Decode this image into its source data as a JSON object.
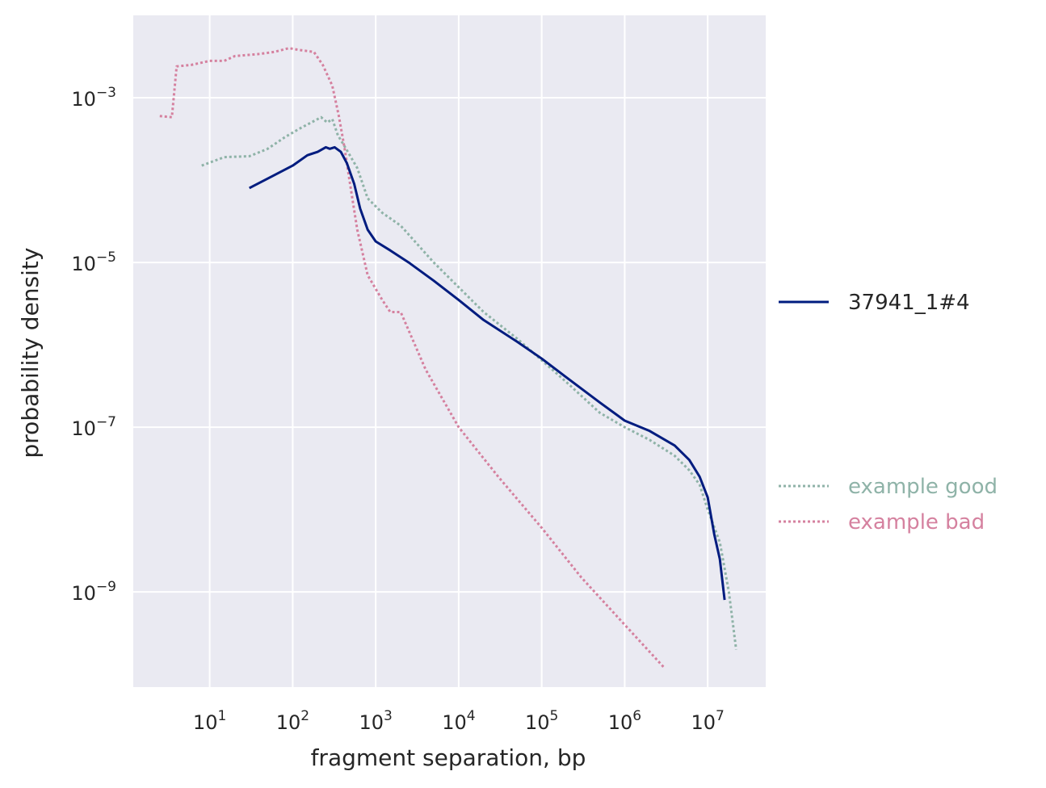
{
  "chart_data": {
    "type": "line",
    "xscale": "log",
    "yscale": "log",
    "xlabel": "fragment separation, bp",
    "ylabel": "probability density",
    "xlim": [
      1.2,
      50000000.0
    ],
    "ylim": [
      7e-11,
      0.01
    ],
    "x_ticks": [
      {
        "base": "10",
        "exp": "1",
        "value": 10
      },
      {
        "base": "10",
        "exp": "2",
        "value": 100
      },
      {
        "base": "10",
        "exp": "3",
        "value": 1000
      },
      {
        "base": "10",
        "exp": "4",
        "value": 10000
      },
      {
        "base": "10",
        "exp": "5",
        "value": 100000
      },
      {
        "base": "10",
        "exp": "6",
        "value": 1000000
      },
      {
        "base": "10",
        "exp": "7",
        "value": 10000000
      }
    ],
    "y_ticks": [
      {
        "base": "10",
        "exp": "−3",
        "value": 0.001
      },
      {
        "base": "10",
        "exp": "−5",
        "value": 1e-05
      },
      {
        "base": "10",
        "exp": "−7",
        "value": 1e-07
      },
      {
        "base": "10",
        "exp": "−9",
        "value": 1e-09
      }
    ],
    "grid": true,
    "legend_position": "right",
    "series": [
      {
        "name": "37941_1#4",
        "color": "#001c7f",
        "style": "solid",
        "x": [
          30,
          60,
          100,
          150,
          200,
          250,
          280,
          320,
          380,
          450,
          550,
          650,
          800,
          1000,
          1500,
          2500,
          5000,
          10000,
          20000,
          50000,
          100000,
          200000,
          500000,
          1000000,
          2000000,
          4000000,
          6000000,
          8000000,
          10000000,
          12000000,
          14000000,
          16000000
        ],
        "y": [
          8e-05,
          0.000115,
          0.00015,
          0.0002,
          0.00022,
          0.00025,
          0.00024,
          0.00025,
          0.00022,
          0.00016,
          9e-05,
          4.5e-05,
          2.5e-05,
          1.8e-05,
          1.4e-05,
          1e-05,
          6e-06,
          3.5e-06,
          2e-06,
          1.1e-06,
          6.8e-07,
          4e-07,
          2e-07,
          1.2e-07,
          9e-08,
          6e-08,
          4e-08,
          2.5e-08,
          1.4e-08,
          5e-09,
          2.5e-09,
          8e-10
        ]
      },
      {
        "name": "example good",
        "color": "#8fb3a8",
        "style": "dotted",
        "x": [
          8,
          15,
          30,
          50,
          80,
          120,
          180,
          220,
          260,
          300,
          350,
          450,
          600,
          800,
          1200,
          2000,
          5000,
          10000,
          20000,
          50000,
          100000,
          200000,
          500000,
          1000000,
          2000000,
          4000000,
          6000000,
          8000000,
          10000000,
          14000000,
          18000000,
          22000000
        ],
        "y": [
          0.00015,
          0.00019,
          0.000195,
          0.00024,
          0.00033,
          0.00042,
          0.00052,
          0.00058,
          0.0005,
          0.00055,
          0.00035,
          0.00023,
          0.00014,
          6e-05,
          4e-05,
          2.8e-05,
          1e-05,
          5e-06,
          2.5e-06,
          1.2e-06,
          6.5e-07,
          3.5e-07,
          1.5e-07,
          1e-07,
          7e-08,
          4.5e-08,
          3e-08,
          2e-08,
          1e-08,
          4e-09,
          1e-09,
          2e-10
        ]
      },
      {
        "name": "example bad",
        "color": "#d5819f",
        "style": "dotted",
        "x": [
          2.5,
          3.5,
          4,
          6,
          10,
          15,
          20,
          40,
          60,
          90,
          120,
          180,
          230,
          300,
          360,
          420,
          500,
          600,
          800,
          1200,
          1500,
          2000,
          4000,
          10000,
          30000,
          100000,
          300000,
          1000000,
          3000000
        ],
        "y": [
          0.0006,
          0.00058,
          0.0024,
          0.0025,
          0.0028,
          0.0028,
          0.0032,
          0.0034,
          0.0036,
          0.004,
          0.0038,
          0.0036,
          0.0025,
          0.0014,
          0.0006,
          0.00025,
          8e-05,
          2.5e-05,
          7e-06,
          3.5e-06,
          2.5e-06,
          2.5e-06,
          5e-07,
          1e-07,
          2.5e-08,
          6e-09,
          1.5e-09,
          4e-10,
          1.2e-10
        ]
      }
    ]
  }
}
